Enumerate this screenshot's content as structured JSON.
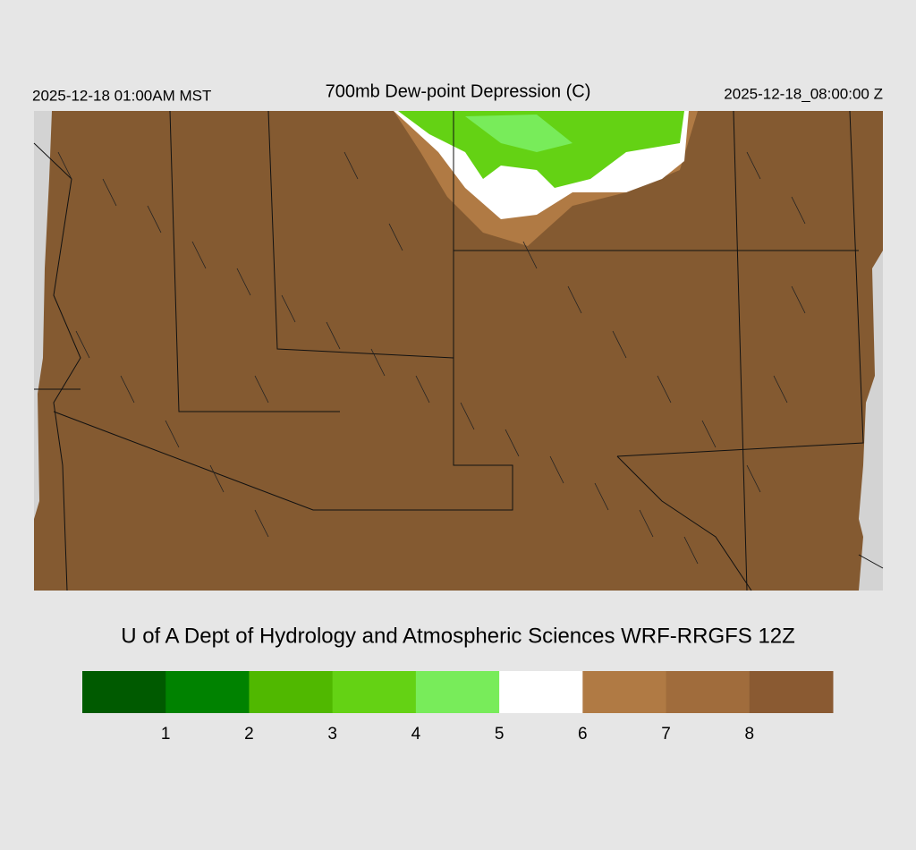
{
  "header": {
    "left": "2025-12-18 01:00AM MST",
    "title": "700mb Dew-point Depression (C)",
    "right": "2025-12-18_08:00:00 Z"
  },
  "footer": {
    "credit": "U of A Dept of Hydrology and Atmospheric Sciences WRF-RRGFS 12Z"
  },
  "colorbar": {
    "colors": [
      "#005a00",
      "#008200",
      "#50b800",
      "#64d214",
      "#78ec5a",
      "#ffffff",
      "#b07a44",
      "#a06c3c",
      "#8a5a32"
    ],
    "ticks": [
      1,
      2,
      3,
      4,
      5,
      6,
      7,
      8
    ]
  }
}
